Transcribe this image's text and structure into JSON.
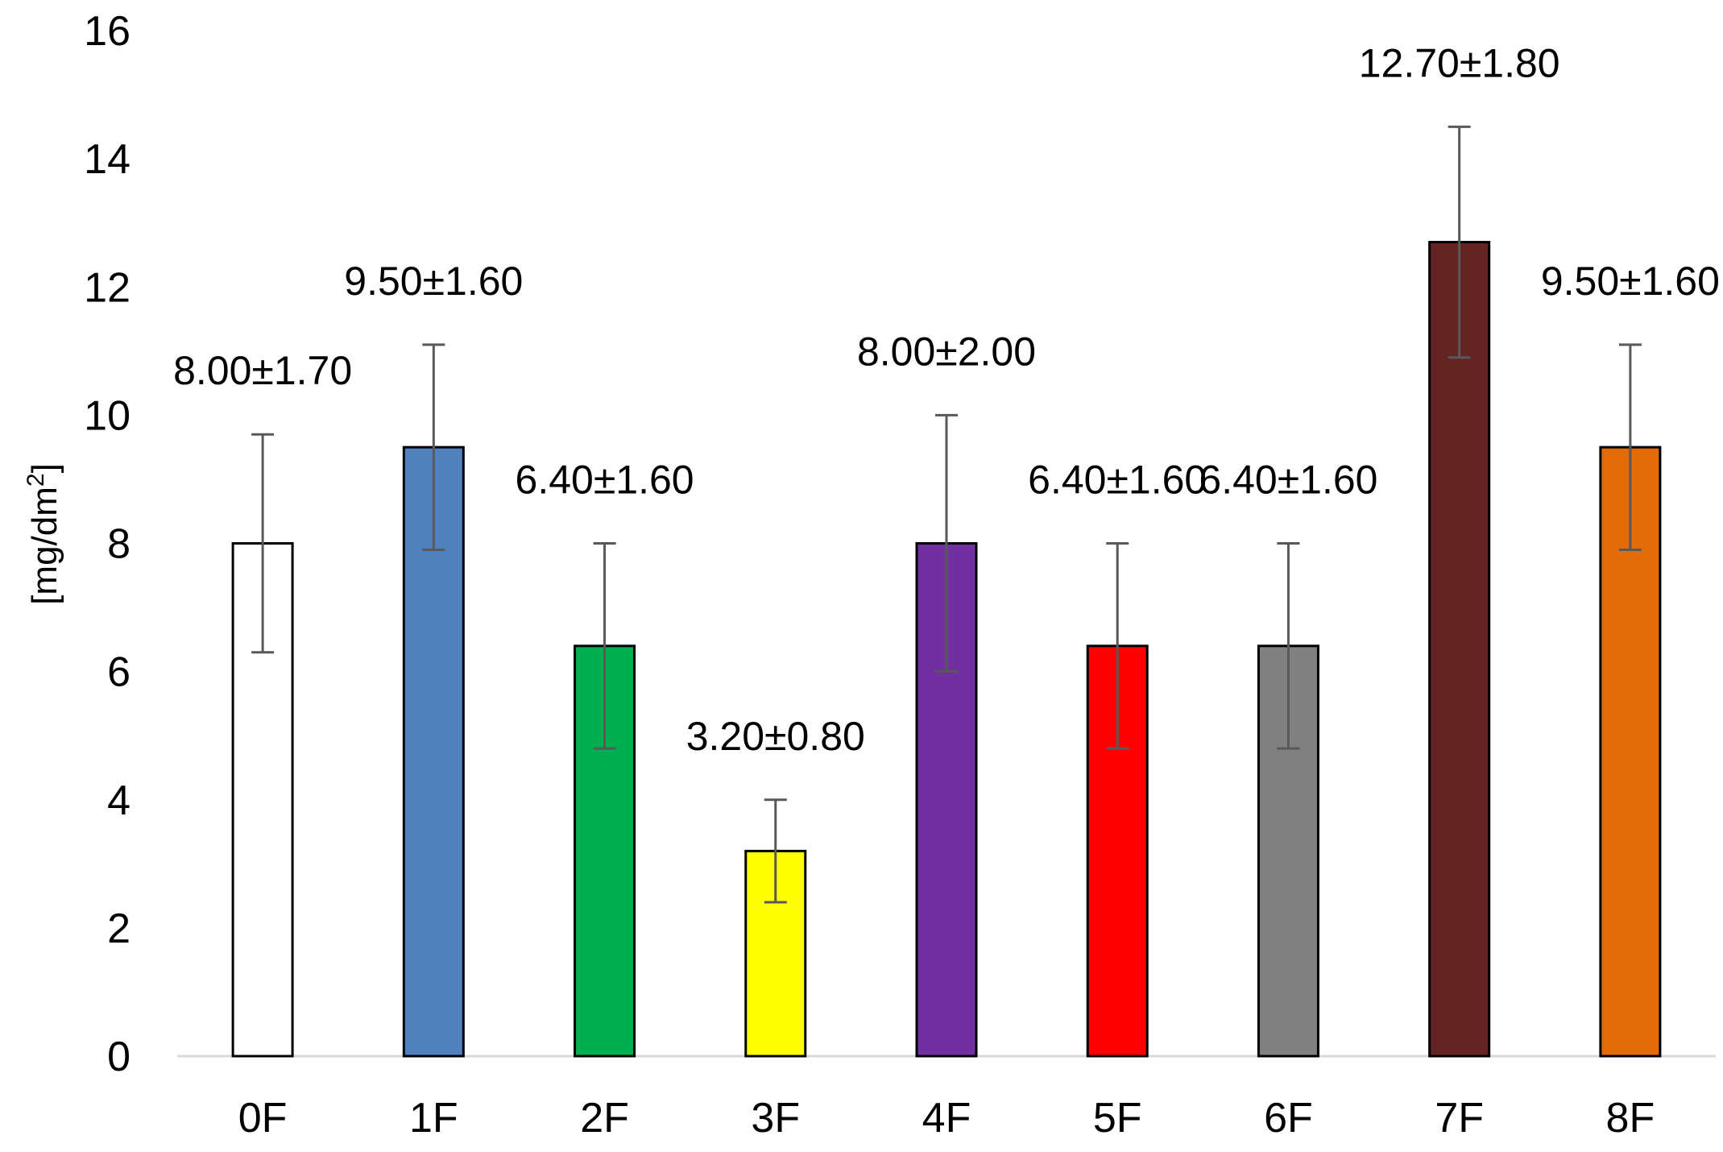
{
  "chart_data": {
    "type": "bar",
    "title": "",
    "xlabel": "",
    "ylabel": "[mg/dm2]",
    "ylabel_main": "[mg/dm",
    "ylabel_sup": "2",
    "ylabel_end": "]",
    "ylim": [
      0,
      16
    ],
    "yticks": [
      0,
      2,
      4,
      6,
      8,
      10,
      12,
      14,
      16
    ],
    "grid": false,
    "categories": [
      "0F",
      "1F",
      "2F",
      "3F",
      "4F",
      "5F",
      "6F",
      "7F",
      "8F"
    ],
    "values": [
      8.0,
      9.5,
      6.4,
      3.2,
      8.0,
      6.4,
      6.4,
      12.7,
      9.5
    ],
    "errors": [
      1.7,
      1.6,
      1.6,
      0.8,
      2.0,
      1.6,
      1.6,
      1.8,
      1.6
    ],
    "data_labels": [
      "8.00±1.70",
      "9.50±1.60",
      "6.40±1.60",
      "3.20±0.80",
      "8.00±2.00",
      "6.40±1.60",
      "6.40±1.60",
      "12.70±1.80",
      "9.50±1.60"
    ],
    "colors": [
      "#ffffff",
      "#4f81bd",
      "#00b050",
      "#ffff00",
      "#7030a0",
      "#ff0000",
      "#808080",
      "#632423",
      "#e36c09"
    ]
  }
}
